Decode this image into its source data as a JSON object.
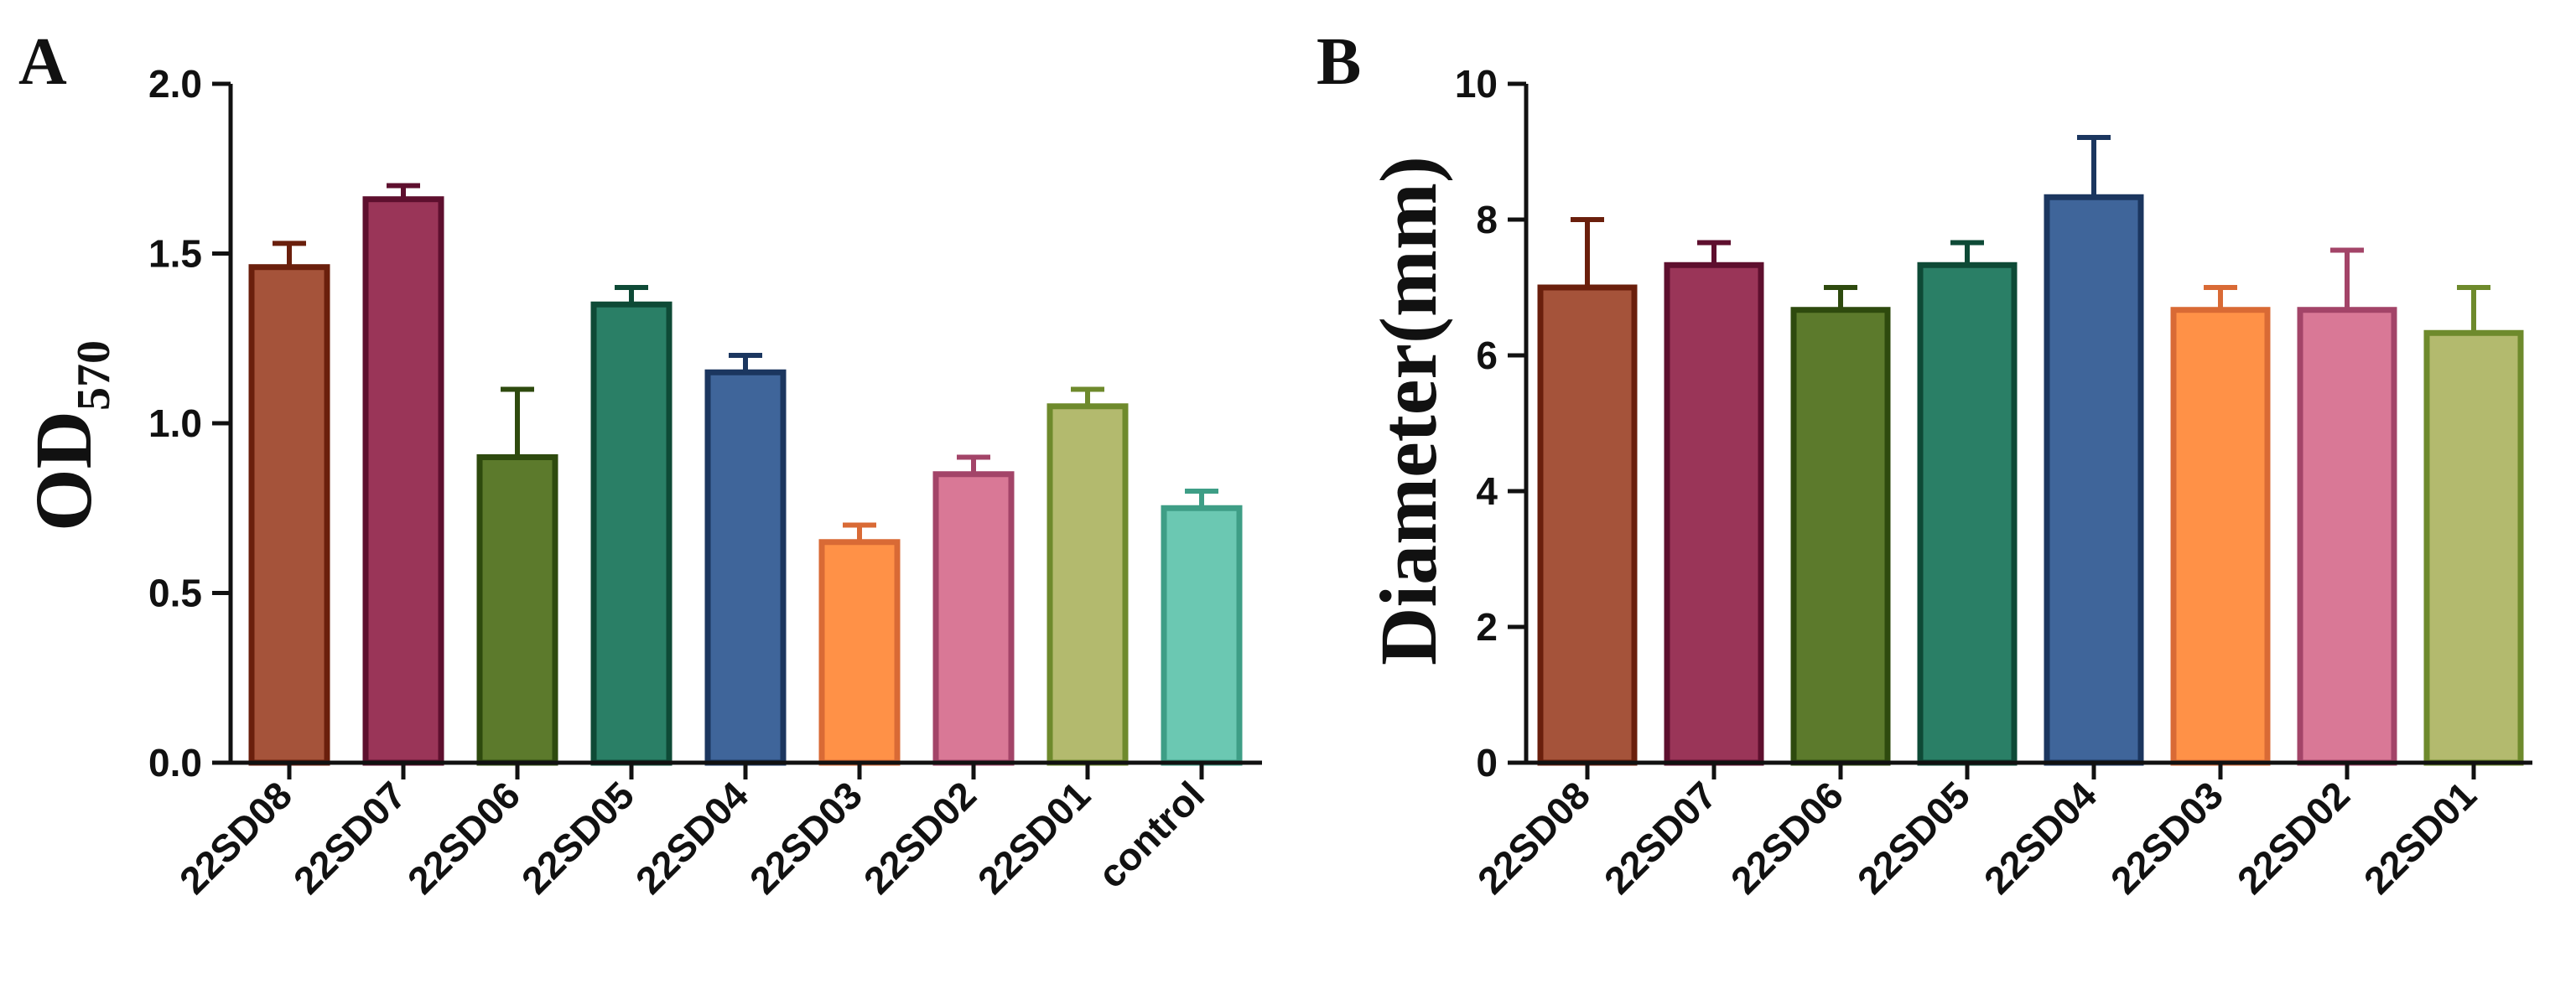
{
  "chart_data": [
    {
      "type": "bar",
      "panel": "A",
      "title": "",
      "xlabel": "",
      "ylabel": "OD",
      "ylabel_subscript": "570",
      "ylim": [
        0,
        2.0
      ],
      "yticks": [
        "0.0",
        "0.5",
        "1.0",
        "1.5",
        "2.0"
      ],
      "categories": [
        "22SD08",
        "22SD07",
        "22SD06",
        "22SD05",
        "22SD04",
        "22SD03",
        "22SD02",
        "22SD01",
        "control"
      ],
      "values": [
        1.46,
        1.66,
        0.9,
        1.35,
        1.15,
        0.65,
        0.85,
        1.05,
        0.75
      ],
      "errors": [
        0.07,
        0.04,
        0.2,
        0.05,
        0.05,
        0.05,
        0.05,
        0.05,
        0.05
      ],
      "fill_colors": [
        "#A5533A",
        "#9A3558",
        "#5C7A2C",
        "#2A7F66",
        "#3F659A",
        "#FF9147",
        "#D97896",
        "#B3BA6E",
        "#6BC8B2"
      ],
      "edge_colors": [
        "#6A1F0C",
        "#5E0F2E",
        "#2E4A0E",
        "#0E4A36",
        "#1B365F",
        "#D96A35",
        "#A34468",
        "#6E8A2C",
        "#3E9E86"
      ],
      "grid": false
    },
    {
      "type": "bar",
      "panel": "B",
      "title": "",
      "xlabel": "",
      "ylabel": "Diameter(mm)",
      "ylim": [
        0,
        10
      ],
      "yticks": [
        "0",
        "2",
        "4",
        "6",
        "8",
        "10"
      ],
      "categories": [
        "22SD08",
        "22SD07",
        "22SD06",
        "22SD05",
        "22SD04",
        "22SD03",
        "22SD02",
        "22SD01"
      ],
      "values": [
        7.0,
        7.33,
        6.67,
        7.33,
        8.33,
        6.67,
        6.67,
        6.33
      ],
      "errors": [
        1.0,
        0.33,
        0.33,
        0.33,
        0.88,
        0.33,
        0.88,
        0.67
      ],
      "fill_colors": [
        "#A5533A",
        "#9A3558",
        "#5C7A2C",
        "#2A7F66",
        "#3F659A",
        "#FF9147",
        "#D97896",
        "#B3BA6E"
      ],
      "edge_colors": [
        "#6A1F0C",
        "#5E0F2E",
        "#2E4A0E",
        "#0E4A36",
        "#1B365F",
        "#D96A35",
        "#A34468",
        "#6E8A2C"
      ],
      "grid": false
    }
  ]
}
